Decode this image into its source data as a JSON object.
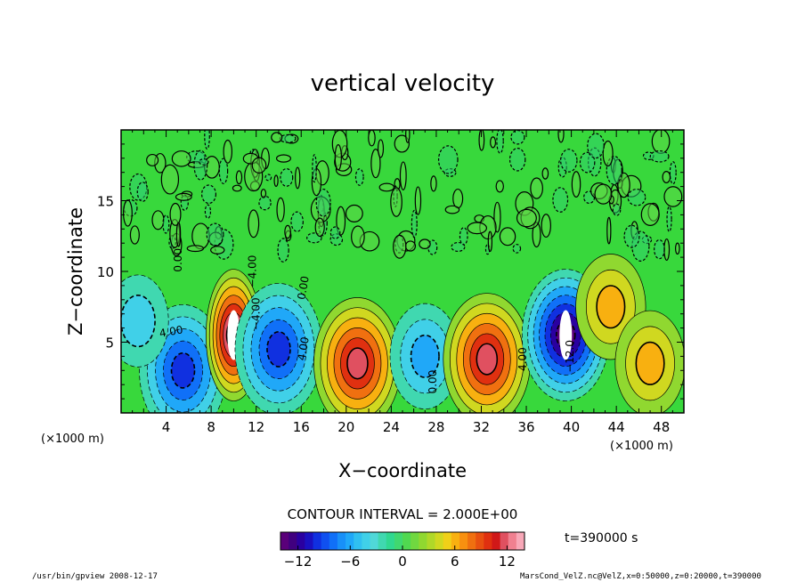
{
  "chart_data": {
    "type": "heatmap",
    "title": "vertical velocity",
    "xlabel": "X−coordinate",
    "ylabel": "Z−coordinate",
    "x_unit_left": "(×1000 m)",
    "x_unit_right": "(×1000 m)",
    "xlim": [
      0,
      50
    ],
    "ylim": [
      0,
      20
    ],
    "xticks": [
      "4",
      "8",
      "12",
      "16",
      "20",
      "24",
      "28",
      "32",
      "36",
      "40",
      "44",
      "48"
    ],
    "yticks": [
      "5",
      "10",
      "15"
    ],
    "contour_interval_text": "CONTOUR INTERVAL = 2.000E+00",
    "contour_labels": [
      "0.00",
      "4.00",
      "−4.00",
      "−4.00",
      "0.00",
      "4.00",
      "0.00",
      "4.00",
      "−12.0"
    ],
    "colorbar": {
      "range": [
        -14,
        14
      ],
      "ticks": [
        "−12",
        "−6",
        "0",
        "6",
        "12"
      ],
      "colors": [
        "#5a007a",
        "#40007f",
        "#2a00a0",
        "#1a10c0",
        "#1030e0",
        "#1050f0",
        "#1070f8",
        "#1890f8",
        "#20a8f8",
        "#30c0f0",
        "#40d0e8",
        "#50d8d8",
        "#40d8b0",
        "#30d890",
        "#40d870",
        "#50d850",
        "#70d840",
        "#90d830",
        "#b0d828",
        "#d0d820",
        "#f0d018",
        "#f8b010",
        "#f89010",
        "#f07010",
        "#e85010",
        "#e03010",
        "#d01818",
        "#e05060",
        "#f08090",
        "#f8a8b8"
      ]
    },
    "time_label": "t=390000 s",
    "features": [
      {
        "x": 5.5,
        "z": 3.0,
        "value": -10
      },
      {
        "x": 1.5,
        "z": 6.5,
        "value": -4
      },
      {
        "x": 10.0,
        "z": 5.5,
        "value": 14
      },
      {
        "x": 14.0,
        "z": 4.5,
        "value": -10
      },
      {
        "x": 21.0,
        "z": 3.5,
        "value": 12
      },
      {
        "x": 27.0,
        "z": 4.0,
        "value": -6
      },
      {
        "x": 32.5,
        "z": 3.8,
        "value": 12
      },
      {
        "x": 39.5,
        "z": 5.5,
        "value": -14
      },
      {
        "x": 43.5,
        "z": 7.5,
        "value": 6
      },
      {
        "x": 47.0,
        "z": 3.5,
        "value": 6
      }
    ]
  },
  "footer": {
    "left": "/usr/bin/gpview  2008-12-17",
    "right": "MarsCond_VelZ.nc@VelZ,x=0:50000,z=0:20000,t=390000"
  }
}
